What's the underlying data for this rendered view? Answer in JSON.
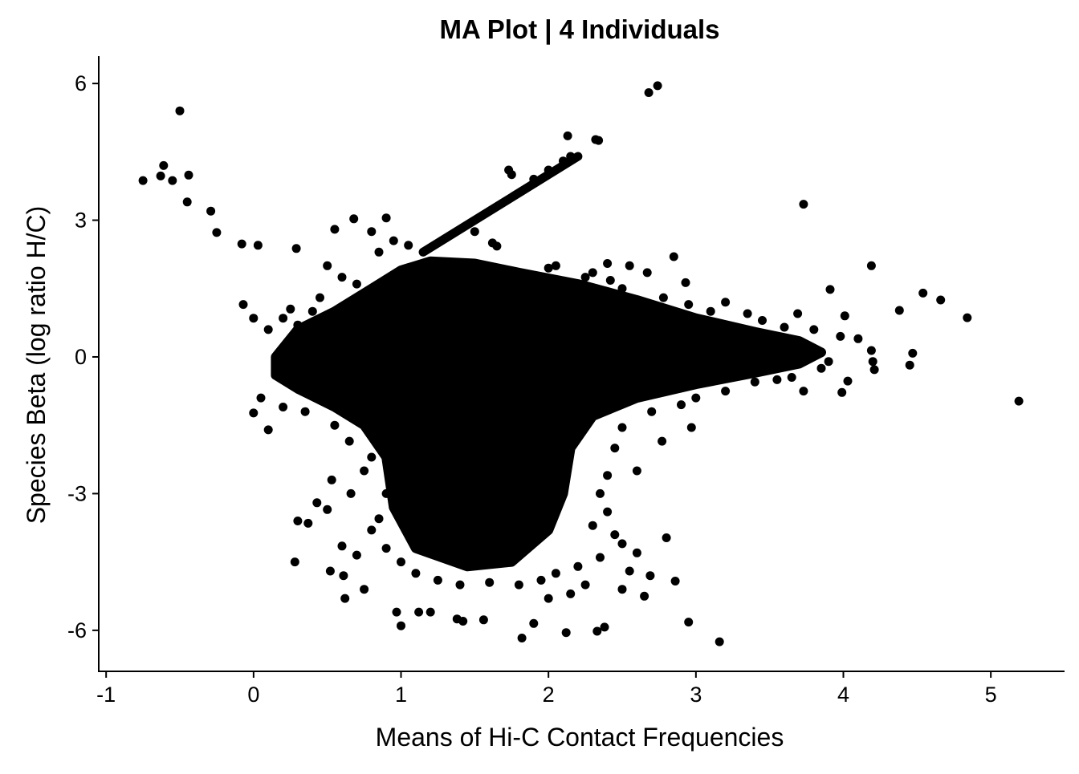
{
  "chart_data": {
    "type": "scatter",
    "title": "MA Plot | 4 Individuals",
    "xlabel": "Means of Hi-C Contact Frequencies",
    "ylabel": "Species Beta (log ratio H/C)",
    "xlim": [
      -1.05,
      5.5
    ],
    "ylim": [
      -6.9,
      6.6
    ],
    "x_ticks": [
      -1,
      0,
      1,
      2,
      3,
      4,
      5
    ],
    "y_ticks": [
      -6,
      -3,
      0,
      3,
      6
    ],
    "grid": false,
    "legend": "none",
    "point_color": "#000000",
    "dense_region_outline": [
      [
        0.15,
        0.0
      ],
      [
        0.3,
        0.6
      ],
      [
        0.55,
        1.0
      ],
      [
        0.8,
        1.5
      ],
      [
        1.0,
        1.9
      ],
      [
        1.2,
        2.1
      ],
      [
        1.5,
        2.05
      ],
      [
        1.8,
        1.85
      ],
      [
        2.2,
        1.6
      ],
      [
        2.6,
        1.25
      ],
      [
        3.0,
        0.85
      ],
      [
        3.4,
        0.55
      ],
      [
        3.7,
        0.35
      ],
      [
        3.85,
        0.1
      ],
      [
        3.7,
        -0.15
      ],
      [
        3.4,
        -0.35
      ],
      [
        3.0,
        -0.6
      ],
      [
        2.6,
        -0.9
      ],
      [
        2.3,
        -1.3
      ],
      [
        2.15,
        -2.0
      ],
      [
        2.1,
        -3.0
      ],
      [
        2.0,
        -3.8
      ],
      [
        1.75,
        -4.5
      ],
      [
        1.45,
        -4.6
      ],
      [
        1.1,
        -4.2
      ],
      [
        0.95,
        -3.3
      ],
      [
        0.9,
        -2.2
      ],
      [
        0.75,
        -1.5
      ],
      [
        0.55,
        -1.1
      ],
      [
        0.3,
        -0.7
      ],
      [
        0.15,
        -0.4
      ]
    ],
    "diagonal_streak": {
      "x": [
        1.15,
        2.2
      ],
      "y": [
        2.3,
        4.4
      ]
    },
    "points": [
      [
        -0.75,
        3.87
      ],
      [
        -0.63,
        3.97
      ],
      [
        -0.61,
        4.2
      ],
      [
        -0.55,
        3.87
      ],
      [
        -0.5,
        5.4
      ],
      [
        -0.44,
        3.99
      ],
      [
        -0.45,
        3.4
      ],
      [
        -0.29,
        3.2
      ],
      [
        -0.25,
        2.73
      ],
      [
        -0.08,
        2.48
      ],
      [
        0.03,
        2.45
      ],
      [
        0.29,
        2.38
      ],
      [
        -0.07,
        1.15
      ],
      [
        0.0,
        0.85
      ],
      [
        0.0,
        -1.23
      ],
      [
        0.1,
        -1.6
      ],
      [
        0.5,
        2.0
      ],
      [
        0.55,
        2.8
      ],
      [
        0.68,
        3.03
      ],
      [
        0.9,
        3.05
      ],
      [
        0.8,
        2.75
      ],
      [
        1.62,
        2.5
      ],
      [
        1.65,
        2.43
      ],
      [
        2.68,
        5.8
      ],
      [
        2.74,
        5.95
      ],
      [
        2.13,
        4.85
      ],
      [
        2.32,
        4.77
      ],
      [
        2.34,
        4.75
      ],
      [
        1.73,
        4.1
      ],
      [
        3.73,
        3.35
      ],
      [
        2.85,
        2.2
      ],
      [
        2.67,
        1.85
      ],
      [
        2.93,
        1.63
      ],
      [
        4.19,
        2.0
      ],
      [
        3.91,
        1.48
      ],
      [
        4.54,
        1.4
      ],
      [
        4.66,
        1.25
      ],
      [
        3.69,
        0.95
      ],
      [
        4.01,
        0.9
      ],
      [
        4.38,
        1.02
      ],
      [
        4.84,
        0.86
      ],
      [
        3.98,
        0.45
      ],
      [
        4.1,
        0.4
      ],
      [
        4.19,
        0.14
      ],
      [
        4.47,
        0.08
      ],
      [
        4.2,
        -0.1
      ],
      [
        4.21,
        -0.28
      ],
      [
        4.45,
        -0.18
      ],
      [
        4.03,
        -0.53
      ],
      [
        3.99,
        -0.78
      ],
      [
        3.73,
        -0.75
      ],
      [
        3.55,
        -0.5
      ],
      [
        5.19,
        -0.97
      ],
      [
        3.56,
        0.1
      ],
      [
        3.36,
        -0.22
      ],
      [
        2.97,
        -1.55
      ],
      [
        2.77,
        -1.85
      ],
      [
        2.6,
        -2.5
      ],
      [
        2.8,
        -3.97
      ],
      [
        2.86,
        -4.92
      ],
      [
        2.69,
        -4.8
      ],
      [
        2.95,
        -5.82
      ],
      [
        3.16,
        -6.25
      ],
      [
        2.33,
        -6.02
      ],
      [
        2.38,
        -5.93
      ],
      [
        2.12,
        -6.05
      ],
      [
        1.82,
        -6.17
      ],
      [
        1.0,
        -5.9
      ],
      [
        0.97,
        -5.6
      ],
      [
        0.28,
        -4.5
      ],
      [
        0.3,
        -3.6
      ],
      [
        0.37,
        -3.65
      ],
      [
        0.5,
        -3.35
      ],
      [
        0.52,
        -4.7
      ],
      [
        0.61,
        -4.8
      ],
      [
        0.62,
        -5.3
      ],
      [
        0.75,
        -5.1
      ],
      [
        0.6,
        -4.15
      ],
      [
        0.7,
        -4.35
      ],
      [
        0.8,
        -3.8
      ],
      [
        0.66,
        -3.0
      ],
      [
        0.43,
        -3.2
      ],
      [
        0.53,
        -2.7
      ],
      [
        0.75,
        -2.5
      ],
      [
        1.12,
        -5.6
      ],
      [
        1.2,
        -5.6
      ],
      [
        1.38,
        -5.75
      ],
      [
        1.42,
        -5.8
      ],
      [
        1.56,
        -5.77
      ],
      [
        1.9,
        -5.85
      ],
      [
        2.0,
        -5.3
      ],
      [
        2.15,
        -5.2
      ],
      [
        2.25,
        -5.0
      ],
      [
        2.5,
        -5.1
      ],
      [
        2.55,
        -4.7
      ],
      [
        2.6,
        -4.3
      ],
      [
        2.65,
        -5.25
      ],
      [
        0.4,
        1.0
      ],
      [
        0.45,
        1.3
      ],
      [
        0.6,
        1.75
      ],
      [
        0.7,
        1.6
      ],
      [
        0.85,
        2.3
      ],
      [
        0.95,
        2.55
      ],
      [
        1.05,
        2.45
      ],
      [
        1.5,
        2.75
      ],
      [
        2.0,
        1.95
      ],
      [
        2.05,
        2.0
      ],
      [
        2.25,
        1.75
      ],
      [
        2.4,
        2.05
      ],
      [
        2.55,
        2.0
      ],
      [
        2.3,
        1.85
      ],
      [
        2.42,
        1.68
      ],
      [
        2.5,
        1.5
      ],
      [
        2.78,
        1.3
      ],
      [
        2.95,
        1.15
      ],
      [
        3.2,
        1.2
      ],
      [
        3.1,
        1.0
      ],
      [
        3.35,
        0.95
      ],
      [
        3.45,
        0.8
      ],
      [
        3.6,
        0.65
      ],
      [
        3.8,
        0.6
      ],
      [
        3.85,
        -0.25
      ],
      [
        3.9,
        -0.1
      ],
      [
        3.65,
        -0.45
      ],
      [
        3.4,
        -0.55
      ],
      [
        3.2,
        -0.75
      ],
      [
        3.0,
        -0.9
      ],
      [
        2.9,
        -1.05
      ],
      [
        2.7,
        -1.2
      ],
      [
        2.5,
        -1.55
      ],
      [
        2.45,
        -2.0
      ],
      [
        2.4,
        -2.6
      ],
      [
        2.35,
        -3.0
      ],
      [
        2.4,
        -3.4
      ],
      [
        2.3,
        -3.7
      ],
      [
        2.45,
        -3.9
      ],
      [
        2.5,
        -4.1
      ],
      [
        2.35,
        -4.4
      ],
      [
        2.2,
        -4.6
      ],
      [
        2.05,
        -4.75
      ],
      [
        1.95,
        -4.9
      ],
      [
        1.8,
        -5.0
      ],
      [
        1.6,
        -4.95
      ],
      [
        1.4,
        -5.0
      ],
      [
        1.25,
        -4.9
      ],
      [
        1.1,
        -4.75
      ],
      [
        1.0,
        -4.5
      ],
      [
        0.9,
        -4.2
      ],
      [
        0.85,
        -3.55
      ],
      [
        0.9,
        -3.0
      ],
      [
        0.8,
        -2.2
      ],
      [
        0.65,
        -1.85
      ],
      [
        0.55,
        -1.5
      ],
      [
        0.35,
        -1.2
      ],
      [
        0.2,
        -1.1
      ],
      [
        0.05,
        -0.9
      ],
      [
        0.1,
        0.6
      ],
      [
        0.2,
        0.85
      ],
      [
        0.25,
        1.05
      ],
      [
        0.3,
        0.7
      ],
      [
        1.75,
        4.0
      ],
      [
        1.9,
        3.9
      ],
      [
        2.0,
        4.1
      ],
      [
        2.1,
        4.3
      ],
      [
        2.15,
        4.4
      ]
    ]
  }
}
